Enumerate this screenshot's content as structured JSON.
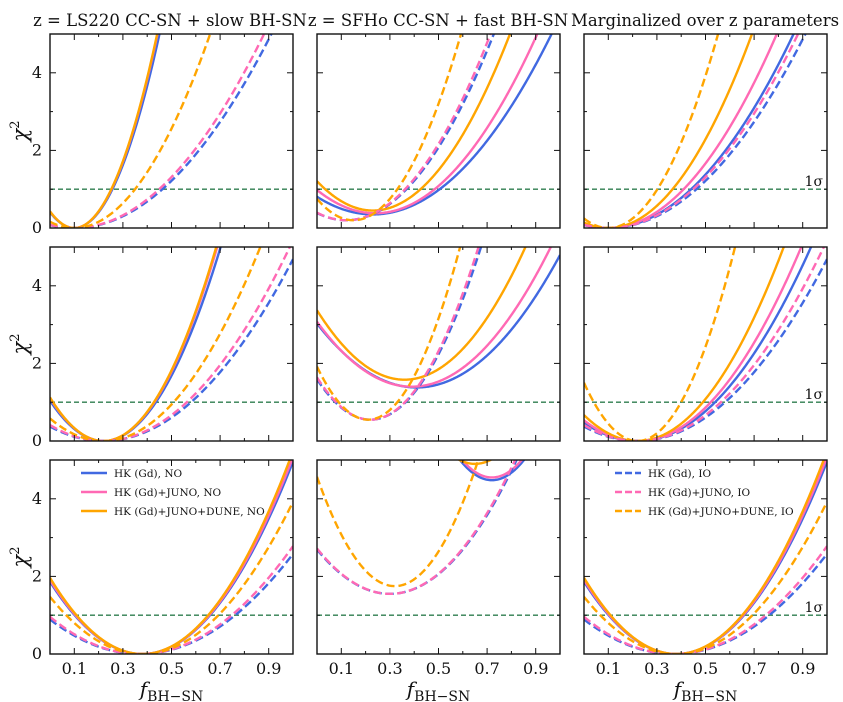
{
  "columns": [
    "z = LS220 CC-SN + slow BH-SN",
    "z = SFHo CC-SN + fast BH-SN",
    "Marginalized over z parameters"
  ],
  "axis": {
    "xlabel": "f",
    "xlabel_sub": "BH−SN",
    "ylabel": "χ",
    "ylabel_sup": "2",
    "xlim": [
      0.0,
      1.0
    ],
    "ylim": [
      0,
      5
    ],
    "xticks": [
      "0.1",
      "0.3",
      "0.5",
      "0.7",
      "0.9"
    ],
    "yticks": [
      "0",
      "2",
      "4"
    ],
    "sigma_label": "1σ",
    "sigma_level": 1.0
  },
  "legend_no": [
    "HK (Gd), NO",
    "HK (Gd)+JUNO, NO",
    "HK (Gd)+JUNO+DUNE, NO"
  ],
  "legend_io": [
    "HK (Gd), IO",
    "HK (Gd)+JUNO, IO",
    "HK (Gd)+JUNO+DUNE, IO"
  ],
  "colors": {
    "hk": "#4169e1",
    "juno": "#ff69b4",
    "dune": "#ffa500",
    "sigma": "#2e7d4f"
  },
  "chart_data": [
    {
      "type": "line",
      "panel": "row1-col1",
      "title": "z = LS220 CC-SN + slow BH-SN",
      "x_range": [
        0.0,
        1.0
      ],
      "ylim": [
        0,
        5
      ],
      "series": [
        {
          "name": "HK (Gd), NO",
          "color": "#4169e1",
          "style": "solid",
          "kind": "quad",
          "x0": 0.1,
          "y0": 0.0,
          "a": 40.7
        },
        {
          "name": "HK (Gd)+JUNO, NO",
          "color": "#ff69b4",
          "style": "solid",
          "kind": "quad",
          "x0": 0.1,
          "y0": 0.0,
          "a": 42.6
        },
        {
          "name": "HK (Gd)+JUNO+DUNE, NO",
          "color": "#ffa500",
          "style": "solid",
          "kind": "quad",
          "x0": 0.1,
          "y0": 0.0,
          "a": 43.0
        },
        {
          "name": "HK (Gd), IO",
          "color": "#4169e1",
          "style": "dashed",
          "kind": "quad",
          "x0": 0.1,
          "y0": 0.0,
          "a": 7.6
        },
        {
          "name": "HK (Gd)+JUNO, IO",
          "color": "#ff69b4",
          "style": "dashed",
          "kind": "quad",
          "x0": 0.1,
          "y0": 0.0,
          "a": 8.2
        },
        {
          "name": "HK (Gd)+JUNO+DUNE, IO",
          "color": "#ffa500",
          "style": "dashed",
          "kind": "quad",
          "x0": 0.1,
          "y0": 0.0,
          "a": 16.0
        }
      ]
    },
    {
      "type": "line",
      "panel": "row1-col2",
      "title": "z = SFHo CC-SN + fast BH-SN",
      "x_range": [
        0.0,
        1.0
      ],
      "ylim": [
        0,
        5
      ],
      "series": [
        {
          "name": "HK (Gd), NO",
          "color": "#4169e1",
          "style": "solid",
          "kind": "quad",
          "x0": 0.23,
          "y0": 0.35,
          "a": 8.6
        },
        {
          "name": "HK (Gd)+JUNO, NO",
          "color": "#ff69b4",
          "style": "solid",
          "kind": "quad",
          "x0": 0.24,
          "y0": 0.38,
          "a": 10.4
        },
        {
          "name": "HK (Gd)+JUNO+DUNE, NO",
          "color": "#ffa500",
          "style": "solid",
          "kind": "quad",
          "x0": 0.23,
          "y0": 0.45,
          "a": 14.3
        },
        {
          "name": "HK (Gd), IO",
          "color": "#4169e1",
          "style": "dashed",
          "kind": "quad",
          "x0": 0.12,
          "y0": 0.2,
          "a": 13.0
        },
        {
          "name": "HK (Gd)+JUNO, IO",
          "color": "#ff69b4",
          "style": "dashed",
          "kind": "quad",
          "x0": 0.12,
          "y0": 0.2,
          "a": 13.6
        },
        {
          "name": "HK (Gd)+JUNO+DUNE, IO",
          "color": "#ffa500",
          "style": "dashed",
          "kind": "quad",
          "x0": 0.15,
          "y0": 0.2,
          "a": 24.5
        }
      ]
    },
    {
      "type": "line",
      "panel": "row1-col3",
      "title": "Marginalized over z parameters",
      "x_range": [
        0.0,
        1.0
      ],
      "ylim": [
        0,
        5
      ],
      "series": [
        {
          "name": "HK (Gd), NO",
          "color": "#4169e1",
          "style": "solid",
          "kind": "quad",
          "x0": 0.1,
          "y0": 0.0,
          "a": 8.6
        },
        {
          "name": "HK (Gd)+JUNO, NO",
          "color": "#ff69b4",
          "style": "solid",
          "kind": "quad",
          "x0": 0.1,
          "y0": 0.0,
          "a": 10.4
        },
        {
          "name": "HK (Gd)+JUNO+DUNE, NO",
          "color": "#ffa500",
          "style": "solid",
          "kind": "quad",
          "x0": 0.1,
          "y0": 0.0,
          "a": 14.3
        },
        {
          "name": "HK (Gd), IO",
          "color": "#4169e1",
          "style": "dashed",
          "kind": "quad",
          "x0": 0.1,
          "y0": 0.0,
          "a": 7.6
        },
        {
          "name": "HK (Gd)+JUNO, IO",
          "color": "#ff69b4",
          "style": "dashed",
          "kind": "quad",
          "x0": 0.1,
          "y0": 0.0,
          "a": 8.2
        },
        {
          "name": "HK (Gd)+JUNO+DUNE, IO",
          "color": "#ffa500",
          "style": "dashed",
          "kind": "quad",
          "x0": 0.1,
          "y0": 0.0,
          "a": 24.5
        }
      ]
    },
    {
      "type": "line",
      "panel": "row2-col1",
      "title": "",
      "x_range": [
        0.0,
        1.0
      ],
      "ylim": [
        0,
        5
      ],
      "series": [
        {
          "name": "HK (Gd), NO",
          "color": "#4169e1",
          "style": "solid",
          "kind": "quad",
          "x0": 0.22,
          "y0": 0.0,
          "a": 21.5
        },
        {
          "name": "HK (Gd)+JUNO, NO",
          "color": "#ff69b4",
          "style": "solid",
          "kind": "quad",
          "x0": 0.22,
          "y0": 0.0,
          "a": 22.8
        },
        {
          "name": "HK (Gd)+JUNO+DUNE, NO",
          "color": "#ffa500",
          "style": "solid",
          "kind": "quad",
          "x0": 0.22,
          "y0": 0.0,
          "a": 23.2
        },
        {
          "name": "HK (Gd), IO",
          "color": "#4169e1",
          "style": "dashed",
          "kind": "quad",
          "x0": 0.22,
          "y0": 0.0,
          "a": 7.7
        },
        {
          "name": "HK (Gd)+JUNO, IO",
          "color": "#ff69b4",
          "style": "dashed",
          "kind": "quad",
          "x0": 0.22,
          "y0": 0.0,
          "a": 8.5
        },
        {
          "name": "HK (Gd)+JUNO+DUNE, IO",
          "color": "#ffa500",
          "style": "dashed",
          "kind": "quad",
          "x0": 0.22,
          "y0": 0.0,
          "a": 12.0
        }
      ]
    },
    {
      "type": "line",
      "panel": "row2-col2",
      "title": "",
      "x_range": [
        0.0,
        1.0
      ],
      "ylim": [
        0,
        5
      ],
      "series": [
        {
          "name": "HK (Gd), NO",
          "color": "#4169e1",
          "style": "solid",
          "kind": "quad",
          "x0": 0.41,
          "y0": 1.38,
          "a": 9.8
        },
        {
          "name": "HK (Gd)+JUNO, NO",
          "color": "#ff69b4",
          "style": "solid",
          "kind": "quad",
          "x0": 0.39,
          "y0": 1.4,
          "a": 11.0
        },
        {
          "name": "HK (Gd)+JUNO+DUNE, NO",
          "color": "#ffa500",
          "style": "solid",
          "kind": "quad",
          "x0": 0.36,
          "y0": 1.58,
          "a": 13.8
        },
        {
          "name": "HK (Gd), IO",
          "color": "#4169e1",
          "style": "dashed",
          "kind": "quad",
          "x0": 0.22,
          "y0": 0.55,
          "a": 21.5
        },
        {
          "name": "HK (Gd)+JUNO, IO",
          "color": "#ff69b4",
          "style": "dashed",
          "kind": "quad",
          "x0": 0.22,
          "y0": 0.55,
          "a": 22.5
        },
        {
          "name": "HK (Gd)+JUNO+DUNE, IO",
          "color": "#ffa500",
          "style": "dashed",
          "kind": "quad",
          "x0": 0.21,
          "y0": 0.55,
          "a": 31.0
        }
      ]
    },
    {
      "type": "line",
      "panel": "row2-col3",
      "title": "",
      "x_range": [
        0.0,
        1.0
      ],
      "ylim": [
        0,
        5
      ],
      "series": [
        {
          "name": "HK (Gd), NO",
          "color": "#4169e1",
          "style": "solid",
          "kind": "quad",
          "x0": 0.22,
          "y0": 0.0,
          "a": 9.8
        },
        {
          "name": "HK (Gd)+JUNO, NO",
          "color": "#ff69b4",
          "style": "solid",
          "kind": "quad",
          "x0": 0.22,
          "y0": 0.0,
          "a": 11.0
        },
        {
          "name": "HK (Gd)+JUNO+DUNE, NO",
          "color": "#ffa500",
          "style": "solid",
          "kind": "quad",
          "x0": 0.22,
          "y0": 0.0,
          "a": 13.8
        },
        {
          "name": "HK (Gd), IO",
          "color": "#4169e1",
          "style": "dashed",
          "kind": "quad",
          "x0": 0.22,
          "y0": 0.0,
          "a": 7.7
        },
        {
          "name": "HK (Gd)+JUNO, IO",
          "color": "#ff69b4",
          "style": "dashed",
          "kind": "quad",
          "x0": 0.22,
          "y0": 0.0,
          "a": 8.5
        },
        {
          "name": "HK (Gd)+JUNO+DUNE, IO",
          "color": "#ffa500",
          "style": "dashed",
          "kind": "quad",
          "x0": 0.22,
          "y0": 0.0,
          "a": 31.0
        }
      ]
    },
    {
      "type": "line",
      "panel": "row3-col1",
      "title": "",
      "x_range": [
        0.0,
        1.0
      ],
      "ylim": [
        0,
        5
      ],
      "series": [
        {
          "name": "HK (Gd), NO",
          "color": "#4169e1",
          "style": "solid",
          "kind": "quad",
          "x0": 0.38,
          "y0": 0.0,
          "a": 12.9
        },
        {
          "name": "HK (Gd)+JUNO, NO",
          "color": "#ff69b4",
          "style": "solid",
          "kind": "quad",
          "x0": 0.38,
          "y0": 0.0,
          "a": 13.2
        },
        {
          "name": "HK (Gd)+JUNO+DUNE, NO",
          "color": "#ffa500",
          "style": "solid",
          "kind": "quad",
          "x0": 0.38,
          "y0": 0.0,
          "a": 13.6
        },
        {
          "name": "HK (Gd), IO",
          "color": "#4169e1",
          "style": "dashed",
          "kind": "quad",
          "x0": 0.37,
          "y0": 0.0,
          "a": 6.5
        },
        {
          "name": "HK (Gd)+JUNO, IO",
          "color": "#ff69b4",
          "style": "dashed",
          "kind": "quad",
          "x0": 0.37,
          "y0": 0.0,
          "a": 7.0
        },
        {
          "name": "HK (Gd)+JUNO+DUNE, IO",
          "color": "#ffa500",
          "style": "dashed",
          "kind": "quad",
          "x0": 0.38,
          "y0": 0.0,
          "a": 10.2
        }
      ]
    },
    {
      "type": "line",
      "panel": "row3-col2",
      "title": "",
      "x_range": [
        0.0,
        1.0
      ],
      "ylim": [
        0,
        5
      ],
      "series": [
        {
          "name": "HK (Gd), NO",
          "color": "#4169e1",
          "style": "solid",
          "kind": "quad",
          "x0": 0.72,
          "y0": 4.48,
          "a": 30.0
        },
        {
          "name": "HK (Gd)+JUNO, NO",
          "color": "#ff69b4",
          "style": "solid",
          "kind": "quad",
          "x0": 0.72,
          "y0": 4.55,
          "a": 30.0
        },
        {
          "name": "HK (Gd)+JUNO+DUNE, NO",
          "color": "#ffa500",
          "style": "solid",
          "kind": "quad",
          "x0": 0.65,
          "y0": 4.9,
          "a": 25.0
        },
        {
          "name": "HK (Gd), IO",
          "color": "#4169e1",
          "style": "dashed",
          "kind": "quad",
          "x0": 0.3,
          "y0": 1.55,
          "a": 12.7
        },
        {
          "name": "HK (Gd)+JUNO, IO",
          "color": "#ff69b4",
          "style": "dashed",
          "kind": "quad",
          "x0": 0.3,
          "y0": 1.55,
          "a": 13.0
        },
        {
          "name": "HK (Gd)+JUNO+DUNE, IO",
          "color": "#ffa500",
          "style": "dashed",
          "kind": "quad",
          "x0": 0.32,
          "y0": 1.75,
          "a": 27.5
        }
      ]
    },
    {
      "type": "line",
      "panel": "row3-col3",
      "title": "",
      "x_range": [
        0.0,
        1.0
      ],
      "ylim": [
        0,
        5
      ],
      "series": [
        {
          "name": "HK (Gd), NO",
          "color": "#4169e1",
          "style": "solid",
          "kind": "quad",
          "x0": 0.38,
          "y0": 0.0,
          "a": 12.9
        },
        {
          "name": "HK (Gd)+JUNO, NO",
          "color": "#ff69b4",
          "style": "solid",
          "kind": "quad",
          "x0": 0.38,
          "y0": 0.0,
          "a": 13.2
        },
        {
          "name": "HK (Gd)+JUNO+DUNE, NO",
          "color": "#ffa500",
          "style": "solid",
          "kind": "quad",
          "x0": 0.38,
          "y0": 0.0,
          "a": 13.6
        },
        {
          "name": "HK (Gd), IO",
          "color": "#4169e1",
          "style": "dashed",
          "kind": "quad",
          "x0": 0.37,
          "y0": 0.0,
          "a": 6.5
        },
        {
          "name": "HK (Gd)+JUNO, IO",
          "color": "#ff69b4",
          "style": "dashed",
          "kind": "quad",
          "x0": 0.37,
          "y0": 0.0,
          "a": 7.0
        },
        {
          "name": "HK (Gd)+JUNO+DUNE, IO",
          "color": "#ffa500",
          "style": "dashed",
          "kind": "quad",
          "x0": 0.38,
          "y0": 0.0,
          "a": 10.2
        }
      ]
    }
  ]
}
